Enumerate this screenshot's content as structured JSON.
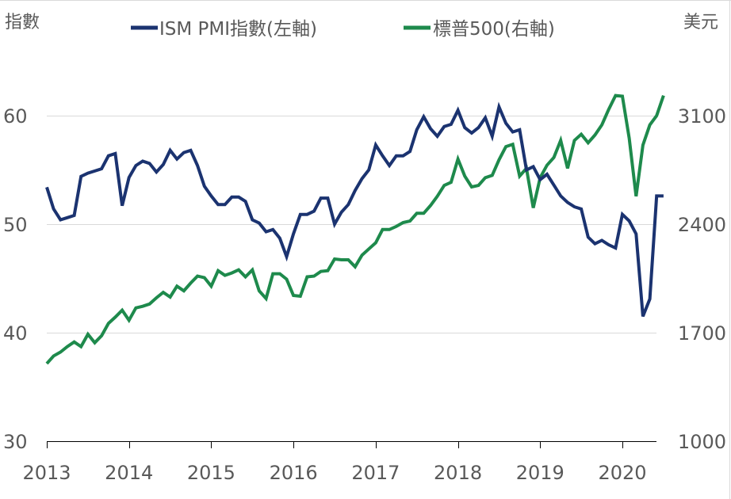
{
  "chart_data": {
    "type": "line",
    "title": "",
    "left_axis": {
      "title": "指數",
      "ylim": [
        30,
        60
      ],
      "ticks": [
        30,
        40,
        50,
        60
      ]
    },
    "right_axis": {
      "title": "美元",
      "ylim": [
        1000,
        3100
      ],
      "ticks": [
        1000,
        1700,
        2400,
        3100
      ]
    },
    "x_axis": {
      "ticks": [
        "2013",
        "2014",
        "2015",
        "2016",
        "2017",
        "2018",
        "2019",
        "2020"
      ],
      "start": "2013-01",
      "frequency": "monthly"
    },
    "grid": true,
    "legend": {
      "placement": "top-center"
    },
    "colors": {
      "pmi": "#1b3370",
      "spx": "#1e8a4c",
      "grid": "#d9d9d9",
      "axis": "#000000",
      "text": "#595959"
    },
    "series": [
      {
        "name": "ISM PMI指數(左軸)",
        "axis": "left",
        "color": "#1b3370",
        "values": [
          53.4,
          51.4,
          50.4,
          50.6,
          50.8,
          54.4,
          54.7,
          54.9,
          55.1,
          56.3,
          56.5,
          51.7,
          54.3,
          55.4,
          55.8,
          55.6,
          54.8,
          55.5,
          56.8,
          56.0,
          56.6,
          56.8,
          55.4,
          53.5,
          52.6,
          51.8,
          51.8,
          52.5,
          52.5,
          52.1,
          50.4,
          50.1,
          49.3,
          49.5,
          48.7,
          47.0,
          49.1,
          50.9,
          50.9,
          51.2,
          52.4,
          52.4,
          50.0,
          51.1,
          51.8,
          53.1,
          54.2,
          55.0,
          57.3,
          56.3,
          55.4,
          56.3,
          56.3,
          56.7,
          58.7,
          59.9,
          58.8,
          58.1,
          59.0,
          59.2,
          60.5,
          58.9,
          58.4,
          58.9,
          59.8,
          58.1,
          60.8,
          59.3,
          58.5,
          58.7,
          55.0,
          55.3,
          54.1,
          54.6,
          53.6,
          52.6,
          52.0,
          51.6,
          51.4,
          48.8,
          48.2,
          48.5,
          48.1,
          47.8,
          50.9,
          50.3,
          49.1,
          41.5,
          43.1,
          52.6,
          52.6
        ]
      },
      {
        "name": "標普500(右軸)",
        "axis": "right",
        "color": "#1e8a4c",
        "values": [
          1500,
          1550,
          1575,
          1610,
          1640,
          1610,
          1690,
          1635,
          1680,
          1760,
          1800,
          1845,
          1780,
          1860,
          1870,
          1885,
          1925,
          1960,
          1930,
          2000,
          1970,
          2020,
          2065,
          2055,
          2000,
          2100,
          2070,
          2085,
          2105,
          2060,
          2105,
          1970,
          1920,
          2080,
          2080,
          2045,
          1940,
          1935,
          2060,
          2065,
          2095,
          2100,
          2175,
          2170,
          2170,
          2125,
          2200,
          2240,
          2280,
          2365,
          2365,
          2385,
          2410,
          2420,
          2470,
          2470,
          2520,
          2580,
          2650,
          2670,
          2820,
          2710,
          2640,
          2650,
          2700,
          2715,
          2815,
          2900,
          2915,
          2710,
          2760,
          2505,
          2700,
          2780,
          2830,
          2940,
          2760,
          2940,
          2980,
          2925,
          2975,
          3040,
          3140,
          3230,
          3225,
          2955,
          2580,
          2910,
          3040,
          3100,
          3230
        ]
      }
    ]
  }
}
